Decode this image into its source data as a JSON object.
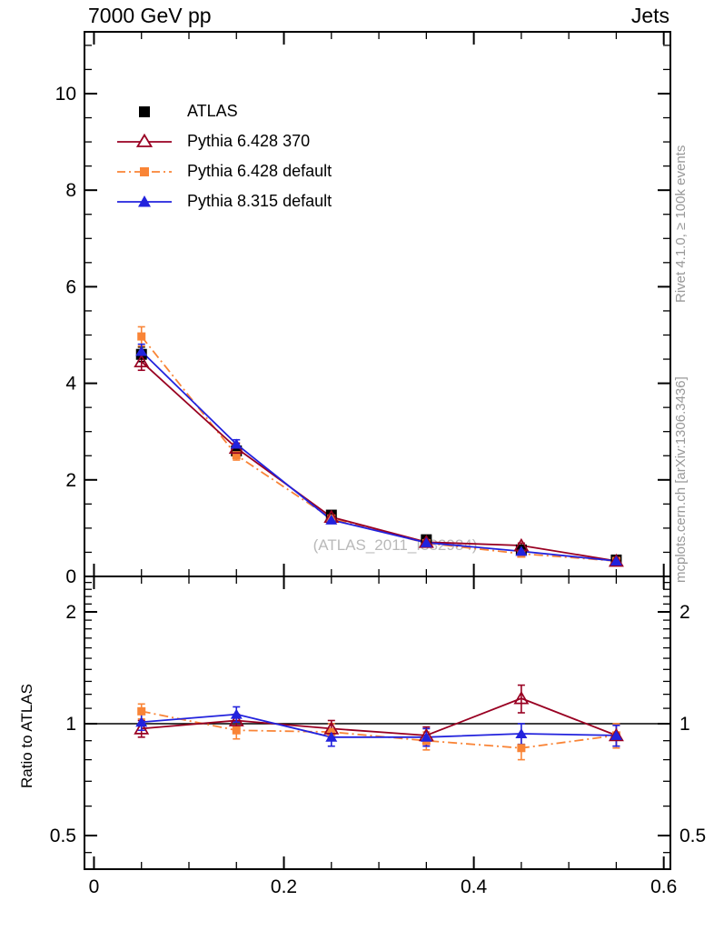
{
  "header": {
    "title_left": "7000 GeV pp",
    "title_right": "Jets"
  },
  "side_notes": {
    "top_right": "Rivet 4.1.0, ≥ 100k events",
    "bottom_right": "mcplots.cern.ch [arXiv:1306.3436]"
  },
  "watermark": "(ATLAS_2011_I882984)",
  "ratio_axis_label": "Ratio to ATLAS",
  "chart_data": {
    "type": "line",
    "title": "7000 GeV pp — Jets (differential jet shape)",
    "x": [
      0.05,
      0.15,
      0.25,
      0.35,
      0.45,
      0.55
    ],
    "series": [
      {
        "name": "ATLAS",
        "marker": "square-filled",
        "line": "none",
        "color": "#000000",
        "values": [
          4.6,
          2.6,
          1.27,
          0.76,
          0.55,
          0.34
        ],
        "errors": [
          0.15,
          0.1,
          0.06,
          0.05,
          0.04,
          0.03
        ]
      },
      {
        "name": "Pythia 6.428 370",
        "marker": "triangle-open",
        "line": "solid",
        "color": "#990022",
        "values": [
          4.45,
          2.66,
          1.23,
          0.71,
          0.64,
          0.32
        ],
        "errors": [
          0.18,
          0.1,
          0.06,
          0.04,
          0.05,
          0.03
        ],
        "ratio": [
          0.97,
          1.02,
          0.97,
          0.93,
          1.17,
          0.93
        ],
        "ratio_errors": [
          0.05,
          0.04,
          0.05,
          0.05,
          0.1,
          0.06
        ]
      },
      {
        "name": "Pythia 6.428 default",
        "marker": "square-filled",
        "line": "dashdot",
        "color": "#f98436",
        "values": [
          4.97,
          2.51,
          1.2,
          0.69,
          0.47,
          0.32
        ],
        "errors": [
          0.2,
          0.1,
          0.06,
          0.04,
          0.04,
          0.03
        ],
        "ratio": [
          1.08,
          0.96,
          0.95,
          0.9,
          0.86,
          0.93
        ],
        "ratio_errors": [
          0.05,
          0.05,
          0.05,
          0.05,
          0.06,
          0.07
        ]
      },
      {
        "name": "Pythia 8.315 default",
        "marker": "triangle-filled",
        "line": "solid",
        "color": "#2222dd",
        "values": [
          4.66,
          2.74,
          1.17,
          0.7,
          0.52,
          0.32
        ],
        "errors": [
          0.15,
          0.09,
          0.05,
          0.03,
          0.03,
          0.02
        ],
        "ratio": [
          1.01,
          1.06,
          0.92,
          0.92,
          0.94,
          0.93
        ],
        "ratio_errors": [
          0.05,
          0.05,
          0.05,
          0.05,
          0.06,
          0.06
        ]
      }
    ],
    "axes": {
      "x": {
        "min": -0.01,
        "max": 0.607,
        "major_ticks": [
          0,
          0.2,
          0.4,
          0.6
        ],
        "tick_labels": [
          "0",
          "0.2",
          "0.4",
          "0.6"
        ],
        "minor_step": 0.05
      },
      "y_main": {
        "min": 0,
        "max": 11.28,
        "major_ticks": [
          0,
          2,
          4,
          6,
          8,
          10
        ],
        "tick_labels": [
          "0",
          "2",
          "4",
          "6",
          "8",
          "10"
        ],
        "minor_step": 0.5
      },
      "y_ratio": {
        "scale": "log",
        "min": 0.406,
        "max": 2.46,
        "major_ticks": [
          0.5,
          1,
          2
        ],
        "tick_labels": [
          "0.5",
          "1",
          "2"
        ],
        "minor_ticks": [
          0.45,
          0.6,
          0.7,
          0.8,
          0.9,
          1.1,
          1.2,
          1.3,
          1.4,
          1.5,
          1.6,
          1.7,
          1.8,
          1.9,
          2.1,
          2.2,
          2.3,
          2.4
        ]
      }
    },
    "ratio_reference_line": 1,
    "legend_position": "top-left",
    "grid": "off"
  }
}
